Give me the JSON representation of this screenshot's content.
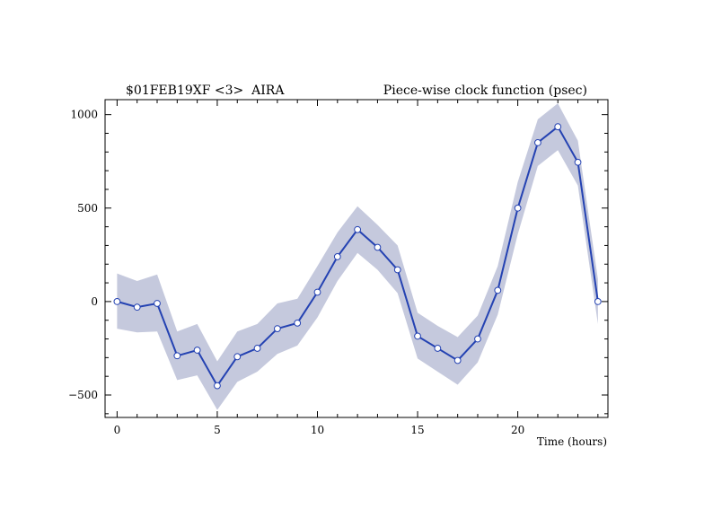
{
  "chart_data": {
    "type": "line",
    "title_left": "$01FEB19XF <3>  AIRA",
    "title_right": "Piece-wise clock function (psec)",
    "xlabel": "Time (hours)",
    "ylabel": "",
    "xlim": [
      -0.6,
      24.5
    ],
    "ylim": [
      -620,
      1080
    ],
    "x_ticks": [
      0,
      5,
      10,
      15,
      20
    ],
    "y_ticks": [
      -500,
      0,
      500,
      1000
    ],
    "grid": false,
    "series": [
      {
        "x": [
          0,
          1,
          2,
          3,
          4,
          5,
          6,
          7,
          8,
          9,
          10,
          11,
          12,
          13,
          14,
          15,
          16,
          17,
          18,
          19,
          20,
          21,
          22,
          23,
          24
        ],
        "y": [
          0,
          -30,
          -10,
          -290,
          -260,
          -450,
          -295,
          -250,
          -145,
          -115,
          50,
          240,
          385,
          290,
          170,
          -185,
          -250,
          -315,
          -200,
          60,
          500,
          850,
          935,
          745,
          0
        ],
        "band_upper": [
          150,
          110,
          145,
          -160,
          -120,
          -320,
          -160,
          -120,
          -10,
          15,
          190,
          370,
          510,
          410,
          300,
          -60,
          -130,
          -190,
          -75,
          190,
          640,
          975,
          1060,
          860,
          120
        ],
        "band_lower": [
          -145,
          -165,
          -160,
          -420,
          -395,
          -580,
          -430,
          -375,
          -280,
          -235,
          -85,
          110,
          260,
          170,
          45,
          -305,
          -375,
          -445,
          -325,
          -70,
          360,
          725,
          810,
          620,
          -120
        ]
      }
    ],
    "colors": {
      "line": "#2442b2",
      "band": "#c5c9dd",
      "marker_fill": "#ffffff"
    }
  }
}
